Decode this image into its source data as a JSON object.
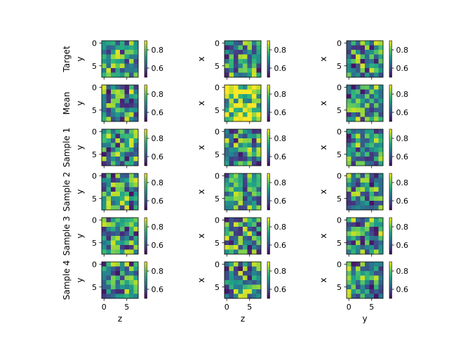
{
  "chart_data": {
    "type": "heatmap",
    "colormap": "viridis",
    "grid_size": 8,
    "value_range": [
      0.5,
      0.9
    ],
    "row_labels": [
      "Target",
      "Mean",
      "Sample 1",
      "Sample 2",
      "Sample 3",
      "Sample 4"
    ],
    "col_xlabels": [
      "z",
      "z",
      "y"
    ],
    "col_ylabels": [
      "y",
      "x",
      "x"
    ],
    "image_ticks": [
      "0",
      "5"
    ],
    "colorbar_ticks": [
      {
        "value": 0.8,
        "label": "0.8"
      },
      {
        "value": 0.6,
        "label": "0.6"
      }
    ],
    "mean_row_index": 1,
    "mean_panel_bias": [
      0.0,
      0.12,
      0.0
    ]
  }
}
